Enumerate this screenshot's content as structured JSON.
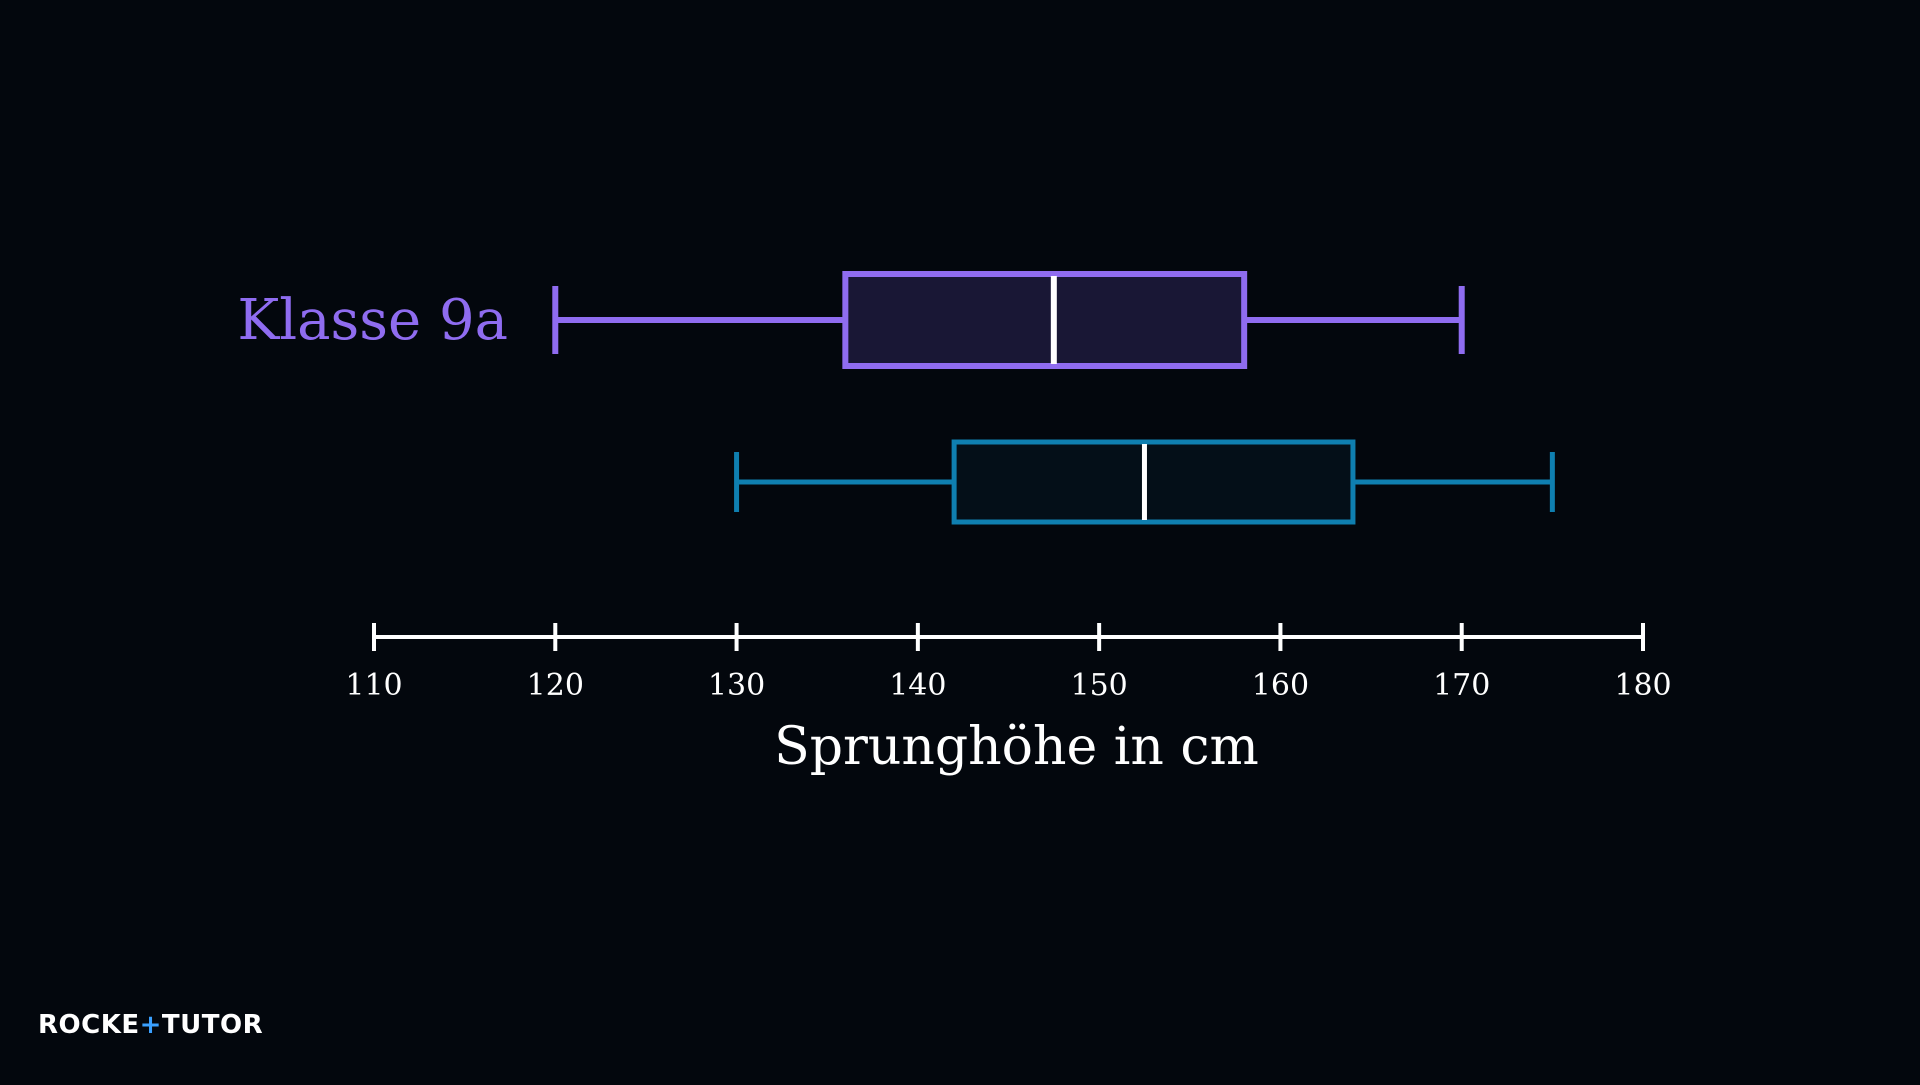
{
  "chart_data": {
    "type": "boxplot",
    "xlabel": "Sprunghöhe in cm",
    "xlim": [
      110,
      180
    ],
    "ticks": [
      110,
      120,
      130,
      140,
      150,
      160,
      170,
      180
    ],
    "tick_labels": [
      "110",
      "120",
      "130",
      "140",
      "150",
      "160",
      "170",
      "180"
    ],
    "series": [
      {
        "name": "Klasse 9a",
        "min": 120,
        "q1": 136,
        "median": 147.5,
        "q3": 158,
        "max": 170,
        "color": "#8f6cf0",
        "fill": "#191735"
      },
      {
        "name": "",
        "min": 130,
        "q1": 142,
        "median": 152.5,
        "q3": 164,
        "max": 175,
        "color": "#0f7fb0",
        "fill": "#040f18"
      }
    ]
  },
  "colors": {
    "background": "#03070d",
    "axis": "#ffffff",
    "median": "#ffffff"
  },
  "logo": {
    "part1": "ROCKE",
    "plus": "+",
    "part2": "TUTO",
    "part3": "R"
  }
}
